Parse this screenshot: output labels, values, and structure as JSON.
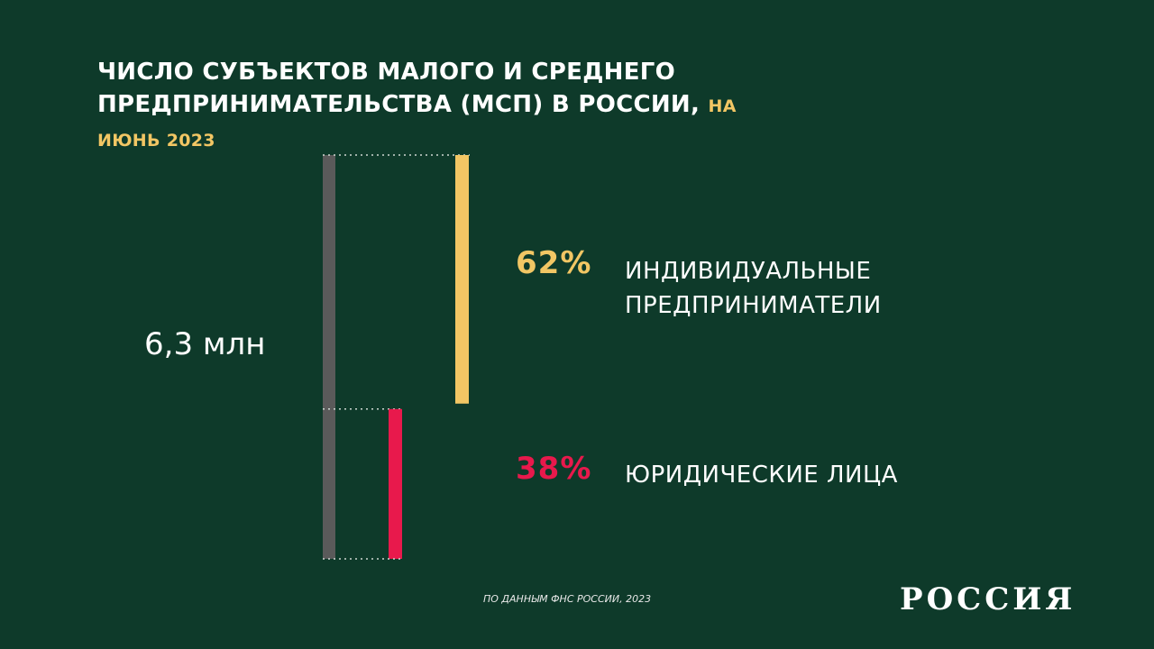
{
  "chart_data": {
    "type": "split-bar",
    "title": "ЧИСЛО СУБЪЕКТОВ МАЛОГО И СРЕДНЕГО ПРЕДПРИНИМАТЕЛЬСТВА (МСП) В РОССИИ,",
    "subtitle": "НА ИЮНЬ 2023",
    "total": {
      "value": 6.3,
      "label": "6,3 млн",
      "color": "#5a5a5a"
    },
    "series": [
      {
        "name": "ИНДИВИДУАЛЬНЫЕ ПРЕДПРИНИМАТЕЛИ",
        "color": "#f2c664",
        "values": [
          62
        ],
        "value_labels": [
          "62%"
        ]
      },
      {
        "name": "ЮРИДИЧЕСКИЕ ЛИЦА",
        "color": "#e8194c",
        "values": [
          38
        ],
        "value_labels": [
          "38%"
        ]
      }
    ],
    "source": "ПО ДАННЫМ ФНС РОССИИ, 2023",
    "logo": "РОССИЯ"
  }
}
